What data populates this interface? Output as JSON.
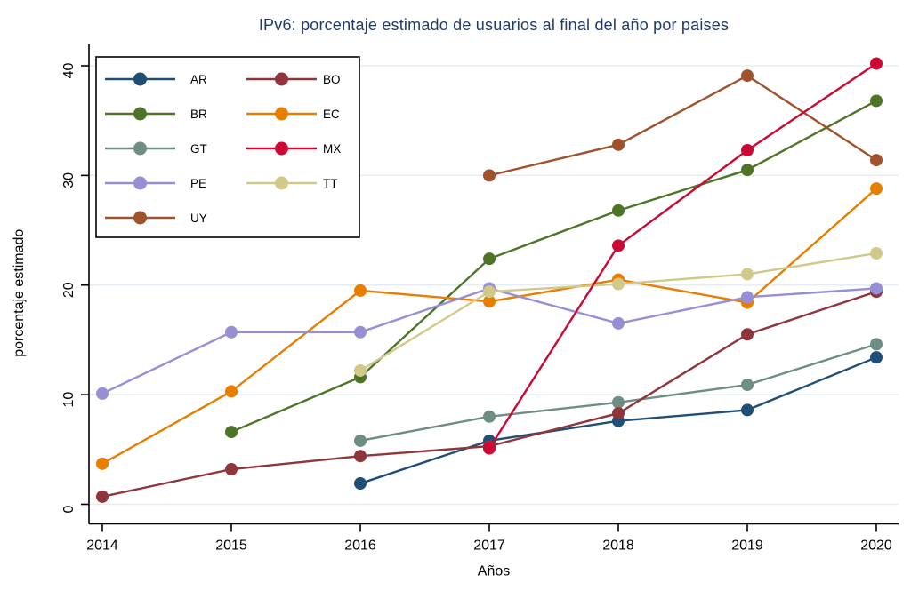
{
  "title": "IPv6: porcentaje estimado de usuarios al final del año por paises",
  "colors": {
    "title_text": "#1f3b66",
    "axis": "#000000",
    "gridline": "#e5edf3",
    "legend_border": "#000000",
    "legend_background": "#ffffff"
  },
  "chart_data": {
    "type": "line",
    "title": "IPv6: porcentaje estimado de usuarios al final del año por paises",
    "xlabel": "Años",
    "ylabel": "porcentaje estimado",
    "x": [
      2014,
      2015,
      2016,
      2017,
      2018,
      2019,
      2020
    ],
    "yticks": [
      0,
      10,
      20,
      30,
      40
    ],
    "ylim": [
      0,
      42
    ],
    "grid": true,
    "legend_position": "top-left",
    "legend_rows": [
      [
        "AR",
        "BO"
      ],
      [
        "BR",
        "EC"
      ],
      [
        "GT",
        "MX"
      ],
      [
        "PE",
        "TT"
      ],
      [
        "UY"
      ]
    ],
    "series": [
      {
        "name": "AR",
        "color": "#1f4e77",
        "values": [
          null,
          null,
          1.9,
          5.8,
          7.6,
          8.6,
          13.4
        ]
      },
      {
        "name": "BO",
        "color": "#90353b",
        "values": [
          0.7,
          3.2,
          4.4,
          5.3,
          8.3,
          15.5,
          19.4
        ]
      },
      {
        "name": "BR",
        "color": "#4e7527",
        "values": [
          null,
          6.6,
          11.6,
          22.4,
          26.8,
          30.5,
          36.8
        ]
      },
      {
        "name": "EC",
        "color": "#e87e00",
        "values": [
          3.7,
          10.3,
          19.5,
          18.5,
          20.5,
          18.4,
          28.8
        ]
      },
      {
        "name": "GT",
        "color": "#6e8e84",
        "values": [
          null,
          null,
          5.8,
          8.0,
          9.3,
          10.9,
          14.6
        ]
      },
      {
        "name": "MX",
        "color": "#cc0935",
        "values": [
          null,
          null,
          null,
          5.1,
          23.6,
          32.3,
          40.2
        ]
      },
      {
        "name": "PE",
        "color": "#978fd6",
        "values": [
          10.1,
          15.7,
          15.7,
          19.7,
          16.5,
          18.9,
          19.7
        ]
      },
      {
        "name": "TT",
        "color": "#d0c98a",
        "values": [
          null,
          null,
          12.2,
          19.4,
          20.1,
          21.0,
          22.9
        ]
      },
      {
        "name": "UY",
        "color": "#a0522d",
        "values": [
          null,
          null,
          null,
          30.0,
          32.8,
          39.1,
          31.4
        ]
      }
    ]
  }
}
